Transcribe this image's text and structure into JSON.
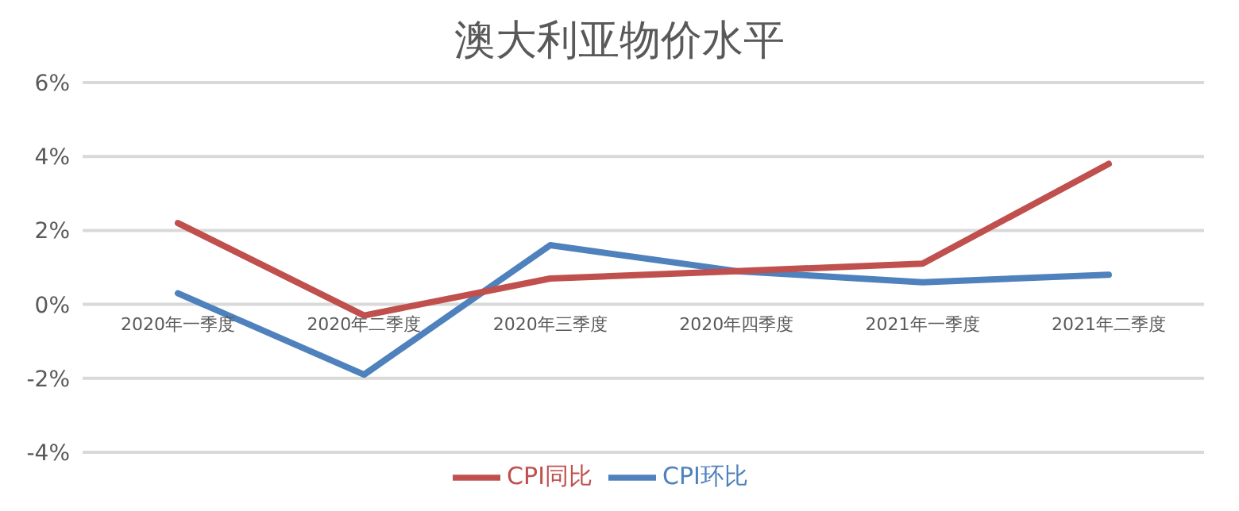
{
  "chart_data": {
    "type": "line",
    "title": "澳大利亚物价水平",
    "categories": [
      "2020年一季度",
      "2020年二季度",
      "2020年三季度",
      "2020年四季度",
      "2021年一季度",
      "2021年二季度"
    ],
    "series": [
      {
        "name": "CPI环比",
        "color": "#4f81bd",
        "values": [
          0.3,
          -1.9,
          1.6,
          0.9,
          0.6,
          0.8
        ]
      },
      {
        "name": "CPI同比",
        "color": "#c0504d",
        "values": [
          2.2,
          -0.3,
          0.7,
          0.9,
          1.1,
          3.8
        ]
      }
    ],
    "ylim": [
      -4,
      6
    ],
    "yticks": [
      {
        "value": -4,
        "label": "-4%"
      },
      {
        "value": -2,
        "label": "-2%"
      },
      {
        "value": 0,
        "label": "0%"
      },
      {
        "value": 2,
        "label": "2%"
      },
      {
        "value": 4,
        "label": "4%"
      },
      {
        "value": 6,
        "label": "6%"
      }
    ],
    "grid": "y",
    "legend": "bottom",
    "marker": "none",
    "line_style": "solid"
  }
}
